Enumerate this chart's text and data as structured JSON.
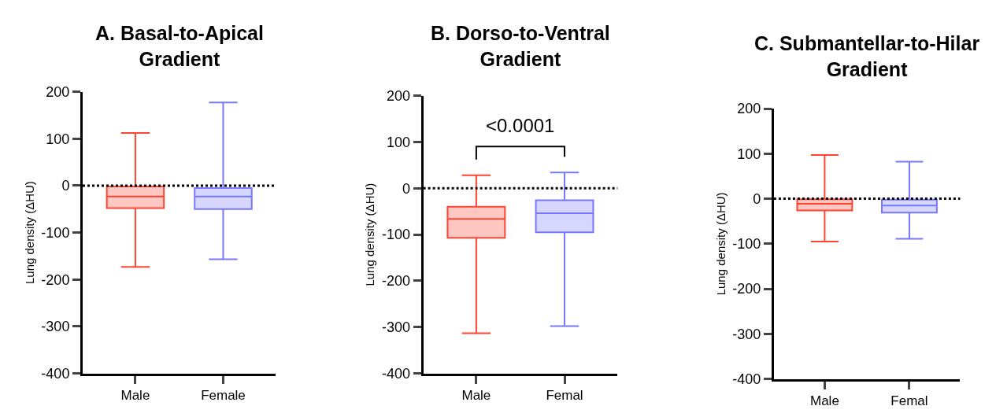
{
  "chart_data": [
    {
      "type": "box",
      "title": "A. Basal-to-Apical Gradient",
      "ylabel": "Lung density (ΔHU)",
      "categories": [
        "Male",
        "Female"
      ],
      "colors": [
        "#ff4433",
        "#7777ff"
      ],
      "boxes": [
        {
          "low": -173,
          "q1": -48,
          "median": -23,
          "q3": -2,
          "high": 112
        },
        {
          "low": -157,
          "q1": -50,
          "median": -23,
          "q3": -5,
          "high": 177
        }
      ],
      "ylim": [
        -400,
        200
      ],
      "yticks": [
        -400,
        -300,
        -200,
        -100,
        0,
        100,
        200
      ],
      "ref_lines": [
        {
          "axis": "y",
          "value": 0,
          "line_style": "dotted",
          "color": "#000000"
        }
      ]
    },
    {
      "type": "box",
      "title": "B. Dorso-to-Ventral Gradient",
      "ylabel": "Lung density (ΔHU)",
      "categories": [
        "Male",
        "Femal"
      ],
      "colors": [
        "#ff4433",
        "#7777ff"
      ],
      "boxes": [
        {
          "low": -313,
          "q1": -107,
          "median": -66,
          "q3": -40,
          "high": 28
        },
        {
          "low": -298,
          "q1": -95,
          "median": -54,
          "q3": -26,
          "high": 34
        }
      ],
      "ylim": [
        -400,
        200
      ],
      "yticks": [
        -400,
        -300,
        -200,
        -100,
        0,
        100,
        200
      ],
      "ref_lines": [
        {
          "axis": "y",
          "value": 0,
          "line_style": "dotted",
          "color": "#000000"
        }
      ],
      "annotations": [
        "<0.0001"
      ]
    },
    {
      "type": "box",
      "title": "C. Submantellar-to-Hilar Gradient",
      "ylabel": "Lung density (ΔHU)",
      "categories": [
        "Male",
        "Femal"
      ],
      "colors": [
        "#ff4433",
        "#7777ff"
      ],
      "boxes": [
        {
          "low": -95,
          "q1": -26,
          "median": -11,
          "q3": -1,
          "high": 97
        },
        {
          "low": -89,
          "q1": -31,
          "median": -15,
          "q3": -2,
          "high": 82
        }
      ],
      "ylim": [
        -400,
        200
      ],
      "yticks": [
        -400,
        -300,
        -200,
        -100,
        0,
        100,
        200
      ],
      "ref_lines": [
        {
          "axis": "y",
          "value": 0,
          "line_style": "dotted",
          "color": "#000000"
        }
      ]
    }
  ]
}
